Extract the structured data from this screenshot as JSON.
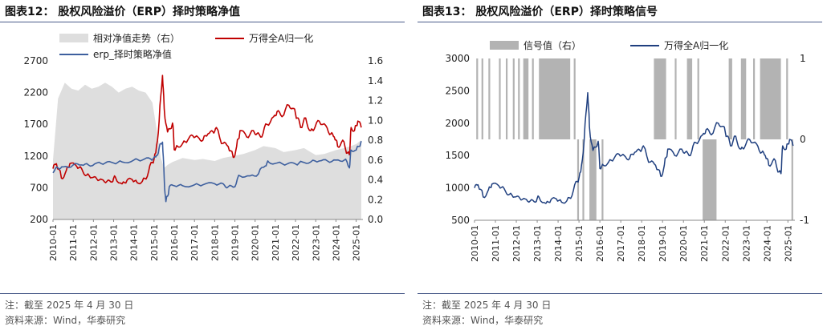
{
  "left": {
    "title": "图表12：  股权风险溢价（ERP）择时策略净值",
    "note": "注：截至 2025 年 4 月 30 日",
    "source": "资料来源：Wind，华泰研究"
  },
  "right": {
    "title": "图表13：  股权风险溢价（ERP）择时策略信号",
    "note": "注：截至 2025 年 4 月 30 日",
    "source": "资料来源：Wind，华泰研究"
  },
  "colors": {
    "red": "#c00000",
    "navy": "#1f3f7f",
    "blue": "#3d5f9e",
    "area": "#dedede",
    "signal": "#b3b3b3",
    "rule": "#4a5c8a"
  },
  "chart_data": [
    {
      "type": "line",
      "x_ticks": [
        "2010-01",
        "2011-01",
        "2012-01",
        "2013-01",
        "2014-01",
        "2015-01",
        "2016-01",
        "2017-01",
        "2018-01",
        "2019-01",
        "2020-01",
        "2021-01",
        "2022-01",
        "2023-01",
        "2024-01",
        "2025-01"
      ],
      "ylim_left": [
        200,
        2700
      ],
      "yticks_left": [
        "2700",
        "2200",
        "1700",
        "1200",
        "700",
        "200"
      ],
      "ylim_right": [
        0.0,
        1.6
      ],
      "yticks_right": [
        "1.6",
        "1.4",
        "1.2",
        "1.0",
        "0.8",
        "0.6",
        "0.4",
        "0.2",
        "0.0"
      ],
      "legend_position": "top",
      "series": [
        {
          "name": "相对净值走势（右）",
          "type": "area",
          "axis": "right",
          "x": [
            "2010-01",
            "2010-04",
            "2010-08",
            "2010-12",
            "2011-04",
            "2011-08",
            "2011-12",
            "2012-04",
            "2012-08",
            "2012-12",
            "2013-04",
            "2013-08",
            "2013-12",
            "2014-04",
            "2014-08",
            "2014-12",
            "2015-03",
            "2015-05",
            "2015-07",
            "2015-09",
            "2015-12",
            "2016-06",
            "2017-01",
            "2017-06",
            "2018-01",
            "2018-06",
            "2018-12",
            "2019-06",
            "2020-01",
            "2020-06",
            "2021-01",
            "2021-06",
            "2022-01",
            "2022-06",
            "2023-01",
            "2023-06",
            "2024-01",
            "2024-06",
            "2024-10",
            "2025-01",
            "2025-04"
          ],
          "values": [
            0.6,
            1.22,
            1.38,
            1.32,
            1.3,
            1.36,
            1.32,
            1.34,
            1.38,
            1.34,
            1.28,
            1.32,
            1.34,
            1.3,
            1.28,
            1.18,
            0.86,
            0.62,
            0.52,
            0.55,
            0.58,
            0.62,
            0.6,
            0.61,
            0.59,
            0.62,
            0.64,
            0.66,
            0.7,
            0.74,
            0.72,
            0.68,
            0.7,
            0.72,
            0.65,
            0.66,
            0.7,
            0.72,
            0.74,
            0.76,
            0.8
          ]
        },
        {
          "name": "万得全A归一化",
          "type": "line",
          "axis": "left",
          "x": [
            "2010-01",
            "2010-03",
            "2010-06",
            "2010-09",
            "2010-11",
            "2011-03",
            "2011-06",
            "2011-09",
            "2011-12",
            "2012-03",
            "2012-06",
            "2012-09",
            "2012-12",
            "2013-02",
            "2013-06",
            "2013-09",
            "2013-12",
            "2014-03",
            "2014-06",
            "2014-09",
            "2014-12",
            "2015-02",
            "2015-04",
            "2015-06",
            "2015-07",
            "2015-09",
            "2015-12",
            "2016-01",
            "2016-03",
            "2016-06",
            "2016-09",
            "2016-12",
            "2017-03",
            "2017-06",
            "2017-09",
            "2017-12",
            "2018-02",
            "2018-06",
            "2018-09",
            "2018-12",
            "2019-02",
            "2019-04",
            "2019-08",
            "2019-12",
            "2020-02",
            "2020-05",
            "2020-08",
            "2020-12",
            "2021-02",
            "2021-05",
            "2021-09",
            "2021-12",
            "2022-02",
            "2022-04",
            "2022-07",
            "2022-10",
            "2022-12",
            "2023-03",
            "2023-07",
            "2023-10",
            "2023-12",
            "2024-02",
            "2024-05",
            "2024-08",
            "2024-09",
            "2024-10",
            "2024-12",
            "2025-02",
            "2025-04"
          ],
          "values": [
            1000,
            1080,
            850,
            980,
            1080,
            1040,
            1000,
            900,
            860,
            840,
            830,
            800,
            790,
            870,
            760,
            820,
            830,
            780,
            800,
            880,
            1100,
            1250,
            1750,
            2470,
            1950,
            1580,
            1720,
            1300,
            1350,
            1400,
            1450,
            1520,
            1500,
            1450,
            1550,
            1580,
            1650,
            1400,
            1350,
            1180,
            1350,
            1600,
            1500,
            1600,
            1550,
            1500,
            1700,
            1820,
            1900,
            1820,
            2000,
            1950,
            1800,
            1650,
            1800,
            1600,
            1620,
            1750,
            1680,
            1550,
            1500,
            1350,
            1450,
            1250,
            1220,
            1650,
            1600,
            1750,
            1650
          ]
        },
        {
          "name": "erp_择时策略净值",
          "type": "line",
          "axis": "right",
          "x": [
            "2010-01",
            "2010-04",
            "2010-07",
            "2011-01",
            "2011-06",
            "2011-10",
            "2012-03",
            "2012-08",
            "2013-01",
            "2013-06",
            "2014-01",
            "2014-06",
            "2014-11",
            "2015-02",
            "2015-04",
            "2015-06",
            "2015-07",
            "2015-08",
            "2015-10",
            "2016-01",
            "2016-06",
            "2017-01",
            "2017-06",
            "2018-01",
            "2018-06",
            "2018-09",
            "2019-01",
            "2019-04",
            "2019-10",
            "2020-03",
            "2020-07",
            "2020-09",
            "2021-02",
            "2021-08",
            "2022-01",
            "2022-05",
            "2022-10",
            "2023-03",
            "2023-08",
            "2024-01",
            "2024-06",
            "2024-09",
            "2024-10",
            "2025-01",
            "2025-04"
          ],
          "values": [
            0.47,
            0.52,
            0.53,
            0.55,
            0.55,
            0.55,
            0.57,
            0.57,
            0.57,
            0.58,
            0.6,
            0.6,
            0.61,
            0.63,
            0.72,
            0.78,
            0.42,
            0.18,
            0.33,
            0.34,
            0.34,
            0.35,
            0.35,
            0.36,
            0.36,
            0.33,
            0.33,
            0.44,
            0.44,
            0.46,
            0.54,
            0.58,
            0.57,
            0.56,
            0.56,
            0.58,
            0.58,
            0.59,
            0.59,
            0.6,
            0.6,
            0.52,
            0.7,
            0.7,
            0.79
          ]
        }
      ]
    },
    {
      "type": "line",
      "x_ticks": [
        "2010-01",
        "2011-01",
        "2012-01",
        "2013-01",
        "2014-01",
        "2015-01",
        "2016-01",
        "2017-01",
        "2018-01",
        "2019-01",
        "2020-01",
        "2021-01",
        "2022-01",
        "2023-01",
        "2024-01",
        "2025-01"
      ],
      "ylim_left": [
        500,
        3000
      ],
      "yticks_left": [
        "3000",
        "2500",
        "2000",
        "1500",
        "1000",
        "500"
      ],
      "ylim_right": [
        -1,
        1
      ],
      "yticks_right": [
        "1",
        "0",
        "-1"
      ],
      "legend_position": "top",
      "series": [
        {
          "name": "信号值（右）",
          "type": "signal",
          "axis": "right",
          "high_value": 1,
          "low_value": -1,
          "baseline": 0,
          "high_ranges": [
            [
              "2010-02",
              "2010-03"
            ],
            [
              "2010-05",
              "2010-06"
            ],
            [
              "2010-09",
              "2010-10"
            ],
            [
              "2011-03",
              "2011-04"
            ],
            [
              "2011-07",
              "2011-08"
            ],
            [
              "2011-11",
              "2011-12"
            ],
            [
              "2012-02",
              "2012-03"
            ],
            [
              "2012-05",
              "2012-08"
            ],
            [
              "2012-10",
              "2012-11"
            ],
            [
              "2013-02",
              "2014-08"
            ],
            [
              "2014-10",
              "2014-11"
            ],
            [
              "2018-08",
              "2019-03"
            ],
            [
              "2019-08",
              "2019-09"
            ],
            [
              "2020-03",
              "2020-06"
            ],
            [
              "2020-09",
              "2020-10"
            ],
            [
              "2022-03",
              "2022-05"
            ],
            [
              "2022-10",
              "2023-01"
            ],
            [
              "2023-05",
              "2023-06"
            ],
            [
              "2023-09",
              "2024-09"
            ],
            [
              "2024-12",
              "2025-01"
            ]
          ],
          "low_ranges": [
            [
              "2014-12",
              "2015-01"
            ],
            [
              "2015-03",
              "2015-04"
            ],
            [
              "2015-07",
              "2015-11"
            ],
            [
              "2016-02",
              "2016-03"
            ],
            [
              "2020-12",
              "2021-08"
            ],
            [
              "2025-03",
              "2025-04"
            ]
          ]
        },
        {
          "name": "万得全A归一化",
          "type": "line",
          "axis": "left",
          "x": [
            "2010-01",
            "2010-03",
            "2010-06",
            "2010-09",
            "2010-11",
            "2011-03",
            "2011-06",
            "2011-09",
            "2011-12",
            "2012-03",
            "2012-06",
            "2012-09",
            "2012-12",
            "2013-02",
            "2013-06",
            "2013-09",
            "2013-12",
            "2014-03",
            "2014-06",
            "2014-09",
            "2014-12",
            "2015-02",
            "2015-04",
            "2015-06",
            "2015-07",
            "2015-09",
            "2015-12",
            "2016-01",
            "2016-03",
            "2016-06",
            "2016-09",
            "2016-12",
            "2017-03",
            "2017-06",
            "2017-09",
            "2017-12",
            "2018-02",
            "2018-06",
            "2018-09",
            "2018-12",
            "2019-02",
            "2019-04",
            "2019-08",
            "2019-12",
            "2020-02",
            "2020-05",
            "2020-08",
            "2020-12",
            "2021-02",
            "2021-05",
            "2021-09",
            "2021-12",
            "2022-02",
            "2022-04",
            "2022-07",
            "2022-10",
            "2022-12",
            "2023-03",
            "2023-07",
            "2023-10",
            "2023-12",
            "2024-02",
            "2024-05",
            "2024-08",
            "2024-09",
            "2024-10",
            "2024-12",
            "2025-02",
            "2025-04"
          ],
          "values": [
            1000,
            1050,
            860,
            970,
            1060,
            1030,
            990,
            900,
            860,
            840,
            830,
            800,
            780,
            860,
            760,
            820,
            830,
            780,
            800,
            880,
            1100,
            1250,
            1750,
            2470,
            1950,
            1580,
            1720,
            1300,
            1350,
            1400,
            1450,
            1520,
            1500,
            1450,
            1550,
            1580,
            1650,
            1400,
            1350,
            1180,
            1350,
            1600,
            1500,
            1600,
            1550,
            1500,
            1700,
            1820,
            1900,
            1820,
            2000,
            1950,
            1800,
            1650,
            1800,
            1600,
            1620,
            1750,
            1680,
            1550,
            1500,
            1350,
            1450,
            1250,
            1220,
            1650,
            1600,
            1750,
            1650
          ]
        }
      ]
    }
  ]
}
